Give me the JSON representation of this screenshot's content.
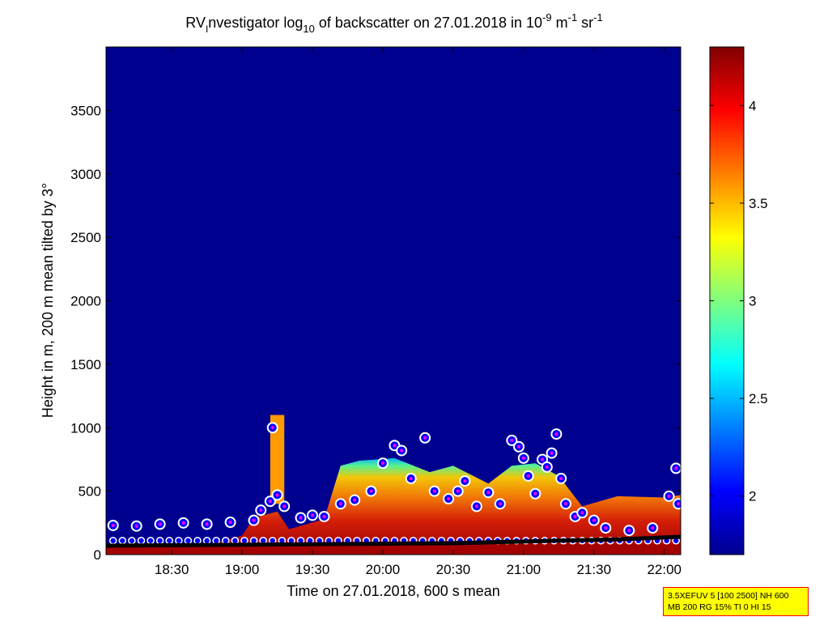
{
  "chart_data": {
    "type": "heatmap",
    "title": {
      "prefix": "RV",
      "sub_i": "I",
      "text1": "nvestigator log",
      "sub_10": "10",
      "text2": " of backscatter on 27.01.2018 in 10",
      "sup1": "-9",
      "text3": " m",
      "sup2": "-1",
      "text4": " sr",
      "sup3": "-1"
    },
    "xlabel": "Time on 27.01.2018, 600 s mean",
    "ylabel": "Height in m, 200 m mean tilted by 3°",
    "x_ticks": [
      "18:30",
      "19:00",
      "19:30",
      "20:00",
      "20:30",
      "21:00",
      "21:30",
      "22:00"
    ],
    "x_range": [
      "18:02",
      "22:07"
    ],
    "y_ticks": [
      0,
      500,
      1000,
      1500,
      2000,
      2500,
      3000,
      3500
    ],
    "y_range": [
      0,
      4000
    ],
    "colorbar": {
      "range": [
        1.7,
        4.3
      ],
      "ticks": [
        "2",
        "2.5",
        "3",
        "3.5",
        "4"
      ],
      "colormap": "jet"
    },
    "grid": false,
    "layers": {
      "top_height": [
        [
          "18:02",
          50
        ],
        [
          "18:45",
          70
        ],
        [
          "19:00",
          150
        ],
        [
          "19:05",
          290
        ],
        [
          "19:15",
          340
        ],
        [
          "19:20",
          200
        ],
        [
          "19:35",
          280
        ],
        [
          "19:42",
          700
        ],
        [
          "19:50",
          740
        ],
        [
          "20:05",
          760
        ],
        [
          "20:20",
          650
        ],
        [
          "20:30",
          700
        ],
        [
          "20:45",
          560
        ],
        [
          "20:55",
          700
        ],
        [
          "21:05",
          720
        ],
        [
          "21:15",
          620
        ],
        [
          "21:25",
          380
        ],
        [
          "21:40",
          460
        ],
        [
          "22:00",
          450
        ],
        [
          "22:07",
          470
        ]
      ],
      "plume": {
        "time": [
          "19:12",
          "19:18"
        ],
        "height": [
          400,
          1100
        ]
      },
      "base_band_height": 80
    },
    "markers": {
      "cloud_points": [
        [
          "18:05",
          230
        ],
        [
          "18:15",
          225
        ],
        [
          "18:25",
          240
        ],
        [
          "18:35",
          250
        ],
        [
          "18:45",
          240
        ],
        [
          "18:55",
          255
        ],
        [
          "19:05",
          270
        ],
        [
          "19:08",
          350
        ],
        [
          "19:12",
          420
        ],
        [
          "19:13",
          1000
        ],
        [
          "19:15",
          470
        ],
        [
          "19:18",
          380
        ],
        [
          "19:25",
          290
        ],
        [
          "19:30",
          310
        ],
        [
          "19:35",
          300
        ],
        [
          "19:42",
          400
        ],
        [
          "19:48",
          430
        ],
        [
          "19:55",
          500
        ],
        [
          "20:00",
          720
        ],
        [
          "20:05",
          860
        ],
        [
          "20:08",
          820
        ],
        [
          "20:12",
          600
        ],
        [
          "20:18",
          920
        ],
        [
          "20:22",
          500
        ],
        [
          "20:28",
          440
        ],
        [
          "20:32",
          500
        ],
        [
          "20:35",
          580
        ],
        [
          "20:40",
          380
        ],
        [
          "20:45",
          490
        ],
        [
          "20:50",
          400
        ],
        [
          "20:55",
          900
        ],
        [
          "20:58",
          850
        ],
        [
          "21:00",
          760
        ],
        [
          "21:02",
          620
        ],
        [
          "21:05",
          480
        ],
        [
          "21:08",
          750
        ],
        [
          "21:10",
          690
        ],
        [
          "21:12",
          800
        ],
        [
          "21:14",
          950
        ],
        [
          "21:16",
          600
        ],
        [
          "21:18",
          400
        ],
        [
          "21:22",
          300
        ],
        [
          "21:25",
          330
        ],
        [
          "21:30",
          270
        ],
        [
          "21:35",
          210
        ],
        [
          "21:45",
          190
        ],
        [
          "21:55",
          210
        ],
        [
          "22:02",
          460
        ],
        [
          "22:05",
          680
        ],
        [
          "22:06",
          400
        ]
      ],
      "low_points_height": 110,
      "ground_line": [
        [
          "18:02",
          70
        ],
        [
          "20:30",
          90
        ],
        [
          "21:15",
          110
        ],
        [
          "21:40",
          120
        ],
        [
          "22:07",
          140
        ]
      ]
    }
  },
  "info_box": {
    "line1": "3.5XEFUV 5 [100 2500] NH 600",
    "line2": "MB 200 RG 15% TI 0 HI 15",
    "background": "#ffff00",
    "border": "#ff0000"
  },
  "colors": {
    "background_plot": "#00008f",
    "marker_fill": "#0000ff",
    "marker_outline": "#ffffff",
    "marker_center": "#ff00ff"
  }
}
